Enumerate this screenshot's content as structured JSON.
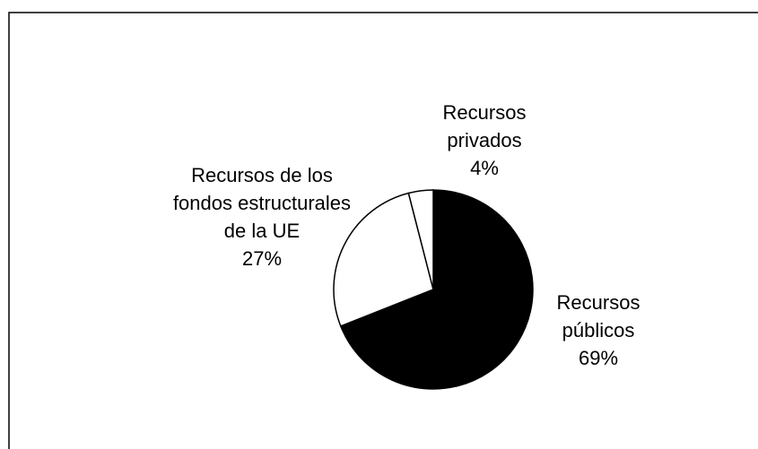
{
  "chart_data": {
    "type": "pie",
    "categories": [
      "Recursos públicos",
      "Recursos de los fondos estructurales de la UE",
      "Recursos privados"
    ],
    "values": [
      69,
      27,
      4
    ],
    "value_labels": [
      "69%",
      "27%",
      "4%"
    ],
    "colors": [
      "#000000",
      "#ffffff",
      "#ffffff"
    ]
  }
}
